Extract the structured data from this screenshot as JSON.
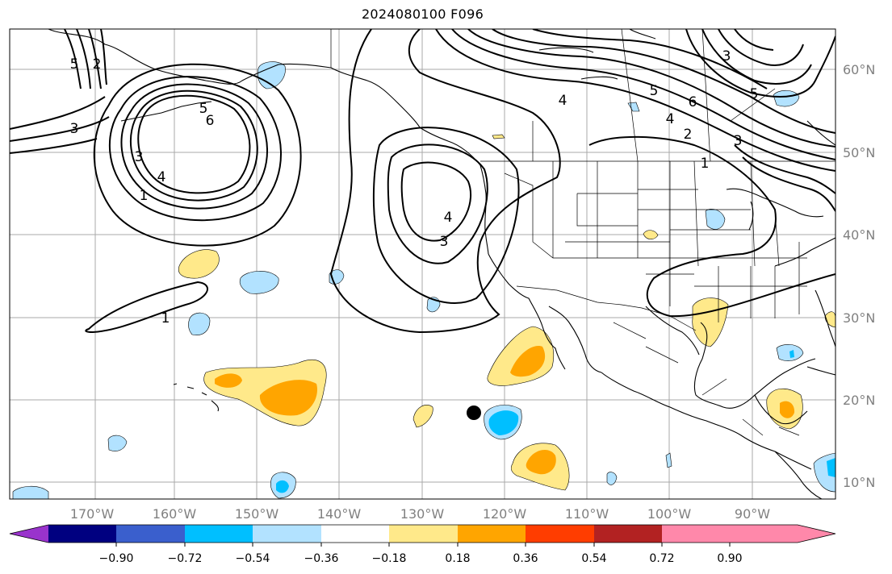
{
  "title": "2024080100 F096",
  "colors": {
    "frame": "#000000",
    "grid": "#a9a9a9",
    "land_line": "#000000",
    "contour": "#000000",
    "axis_label": "#808080"
  },
  "lat_labels": [
    "60°N",
    "50°N",
    "40°N",
    "30°N",
    "20°N",
    "10°N"
  ],
  "lon_labels": [
    "170°W",
    "160°W",
    "150°W",
    "140°W",
    "130°W",
    "120°W",
    "110°W",
    "100°W",
    "90°W"
  ],
  "contour_labels": [
    "5",
    "2",
    "3",
    "5",
    "6",
    "3",
    "4",
    "1",
    "1",
    "4",
    "3",
    "4",
    "6",
    "5",
    "4",
    "2",
    "3",
    "1",
    "3",
    "5"
  ],
  "colorbar": {
    "colors": [
      "#9933cc",
      "#000080",
      "#3a5fcd",
      "#00bfff",
      "#b2e2ff",
      "#ffffff",
      "#ffe98a",
      "#ffa500",
      "#ff3d00",
      "#b22222",
      "#ff88aa"
    ],
    "tick_labels": [
      "−0.90",
      "−0.72",
      "−0.54",
      "−0.36",
      "−0.18",
      "0.18",
      "0.36",
      "0.54",
      "0.72",
      "0.90"
    ]
  }
}
